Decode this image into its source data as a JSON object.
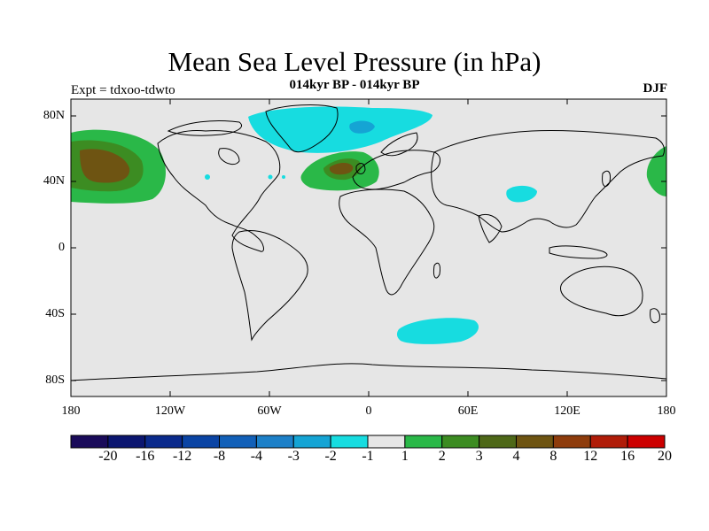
{
  "title": "Mean Sea Level Pressure (in hPa)",
  "subtitle": "014kyr BP - 014kyr BP",
  "expt_label": "Expt = tdxoo-tdwto",
  "season": "DJF",
  "y_axis": {
    "ticks": [
      "80N",
      "40N",
      "0",
      "40S",
      "80S"
    ]
  },
  "x_axis": {
    "ticks": [
      "180",
      "120W",
      "60W",
      "0",
      "60E",
      "120E",
      "180"
    ]
  },
  "colorbar": {
    "labels": [
      "-20",
      "-16",
      "-12",
      "-8",
      "-4",
      "-3",
      "-2",
      "-1",
      "1",
      "2",
      "3",
      "4",
      "8",
      "12",
      "16",
      "20"
    ],
    "colors": [
      "#1a0b5a",
      "#0b1670",
      "#0a2a8c",
      "#0a44a4",
      "#1260b8",
      "#1d80c8",
      "#15a4d4",
      "#17dce0",
      "#e6e6e6",
      "#2ab848",
      "#3c8c22",
      "#4e6818",
      "#6e5412",
      "#8e3c0c",
      "#b01c08",
      "#cc0000"
    ]
  },
  "colors": {
    "background": "#e6e6e6",
    "positive_weak": "#2ab848",
    "positive_mid": "#3c8c22",
    "positive_strong": "#6e5412",
    "negative_weak": "#17dce0",
    "negative_mid": "#15a4d4"
  }
}
